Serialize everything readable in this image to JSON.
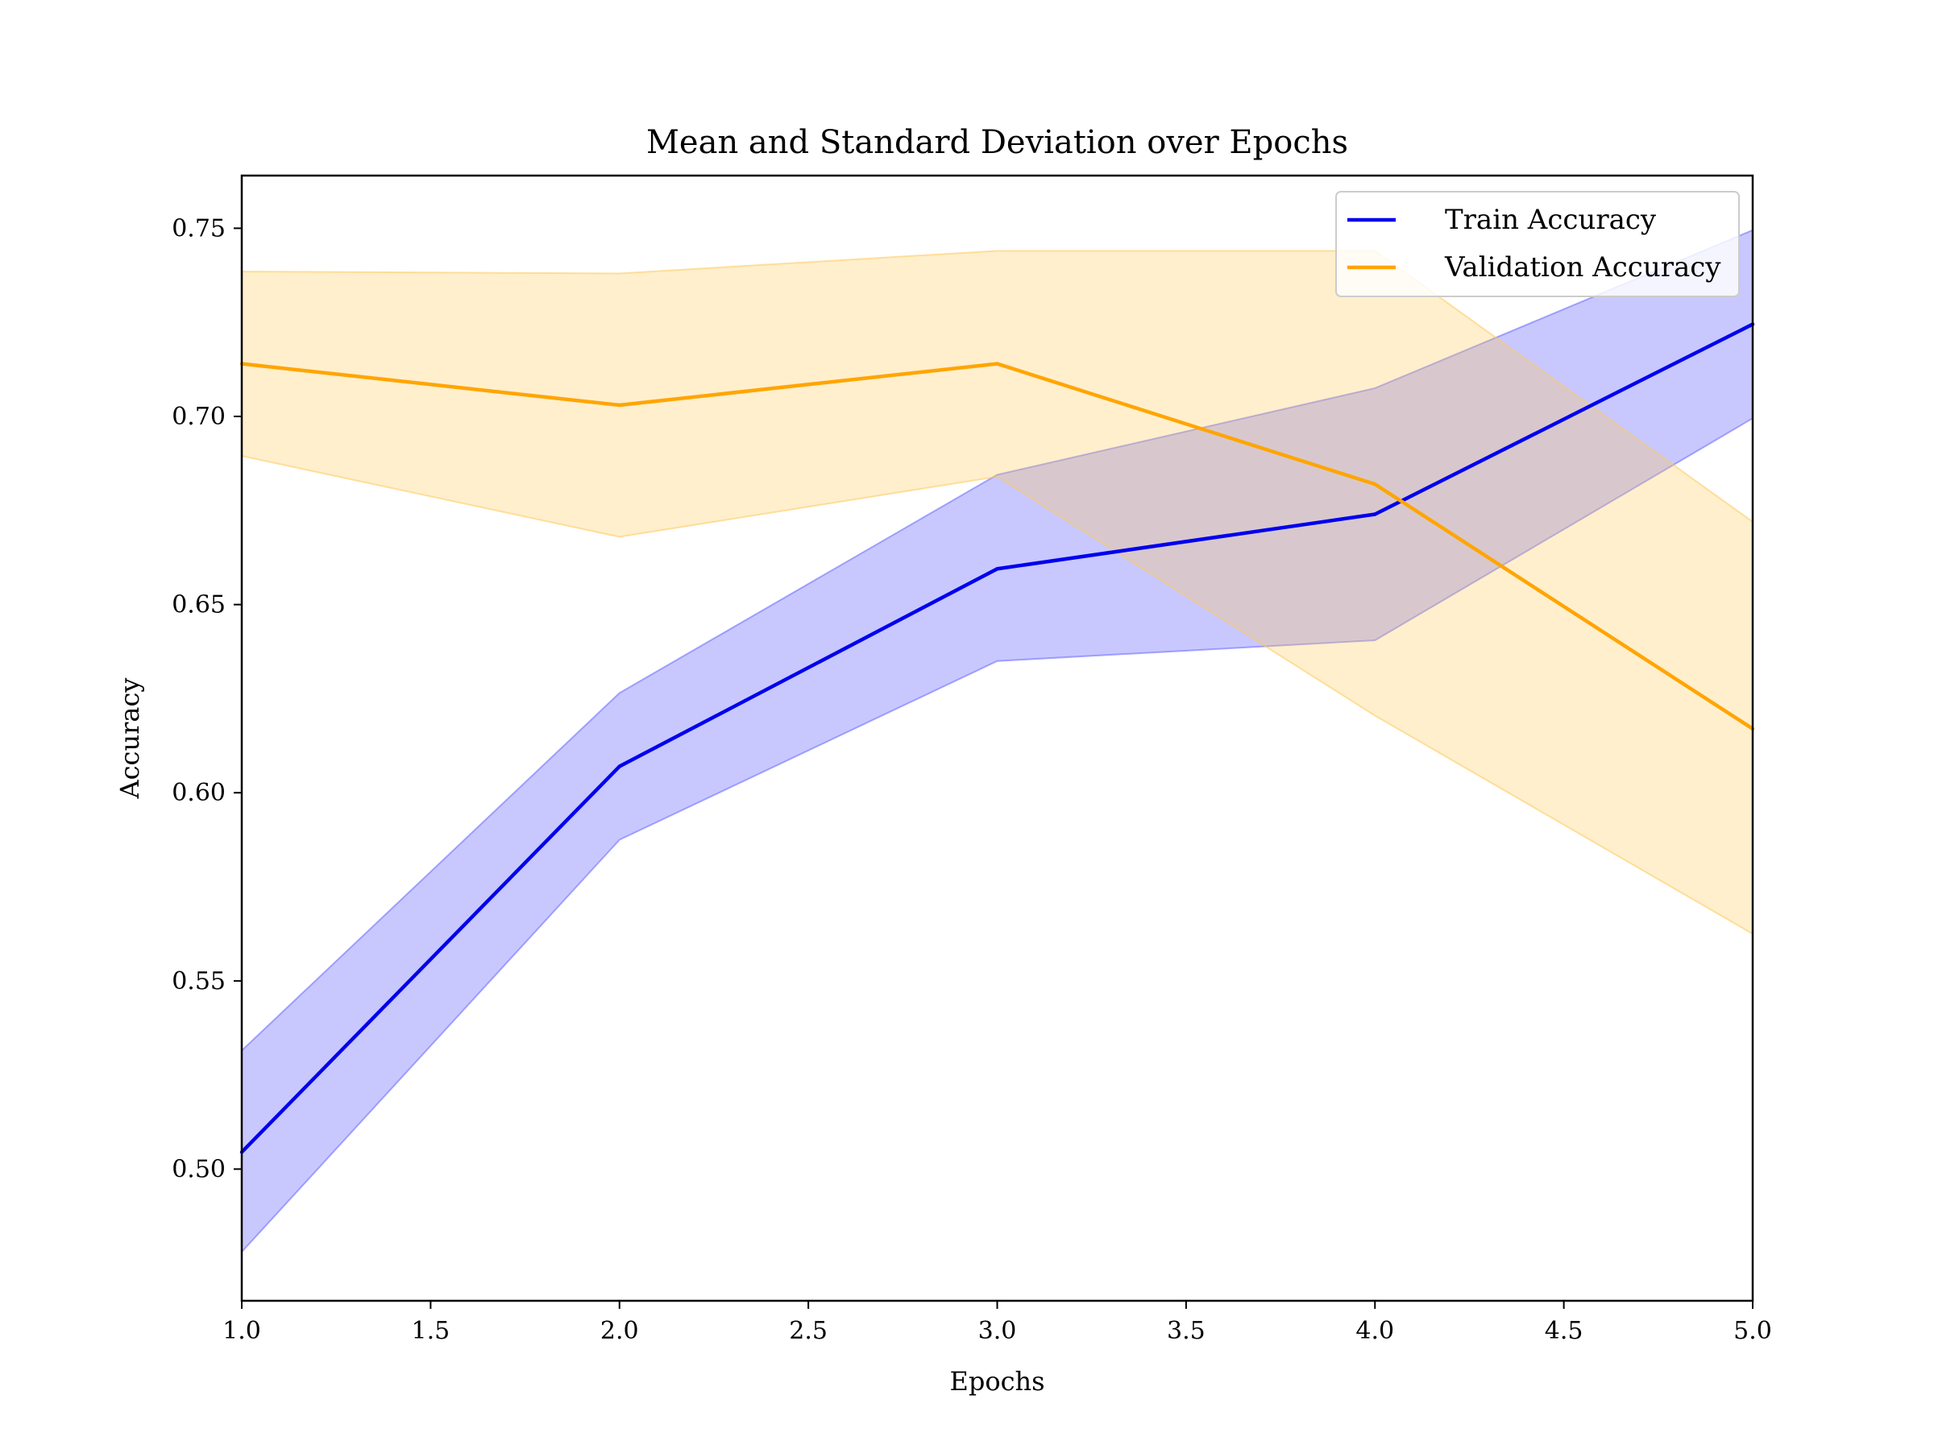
{
  "chart_data": {
    "type": "line",
    "title": "Mean and Standard Deviation over Epochs",
    "xlabel": "Epochs",
    "ylabel": "Accuracy",
    "xlim": [
      1.0,
      5.0
    ],
    "ylim": [
      0.465,
      0.764
    ],
    "xticks": [
      "1.0",
      "1.5",
      "2.0",
      "2.5",
      "3.0",
      "3.5",
      "4.0",
      "4.5",
      "5.0"
    ],
    "yticks": [
      "0.50",
      "0.55",
      "0.60",
      "0.65",
      "0.70",
      "0.75"
    ],
    "x": [
      1,
      2,
      3,
      4,
      5
    ],
    "grid": false,
    "legend_position": "top-right",
    "series": [
      {
        "name": "Train Accuracy",
        "color": "#0000ee",
        "values": [
          0.5045,
          0.607,
          0.6595,
          0.674,
          0.7245
        ],
        "band_lower": [
          0.478,
          0.5875,
          0.635,
          0.6405,
          0.6995
        ],
        "band_upper": [
          0.5315,
          0.6265,
          0.6845,
          0.7075,
          0.7495
        ],
        "band_color": "#6666ff"
      },
      {
        "name": "Validation Accuracy",
        "color": "#ffa500",
        "values": [
          0.714,
          0.703,
          0.714,
          0.682,
          0.617
        ],
        "band_lower": [
          0.6895,
          0.668,
          0.684,
          0.6205,
          0.5625
        ],
        "band_upper": [
          0.7385,
          0.738,
          0.744,
          0.744,
          0.672
        ],
        "band_color": "#ffc95a"
      }
    ]
  }
}
